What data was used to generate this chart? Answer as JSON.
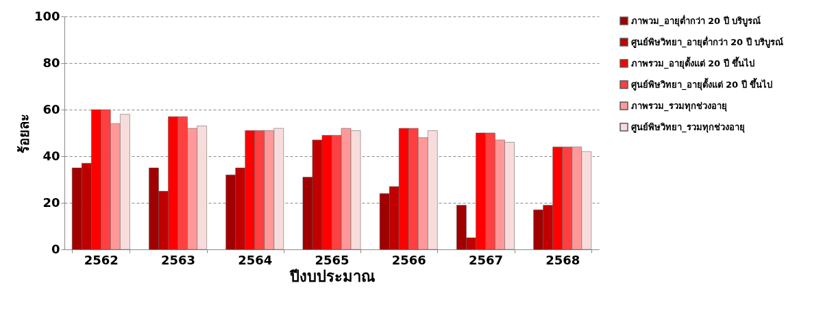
{
  "chart_data": {
    "type": "bar",
    "xlabel": "ปีงบประมาณ",
    "ylabel": "ร้อยละ",
    "categories": [
      "2562",
      "2563",
      "2564",
      "2565",
      "2566",
      "2567",
      "2568"
    ],
    "series": [
      {
        "name": "ภาพวม_อายุต่ำกว่า 20 ปี บริบูรณ์",
        "color": "#a00000",
        "values": [
          35,
          35,
          32,
          31,
          24,
          19,
          17
        ]
      },
      {
        "name": "ศูนย์พิษวิทยา_อายุต่ำกว่า 20 ปี บริบูรณ์",
        "color": "#c00000",
        "values": [
          37,
          25,
          35,
          47,
          27,
          5,
          19
        ]
      },
      {
        "name": "ภาพรวม_อายุตั้งแต่ 20 ปี ขึ้นไป",
        "color": "#ff0000",
        "values": [
          60,
          57,
          51,
          49,
          52,
          50,
          44
        ]
      },
      {
        "name": "ศูนย์พิษวิทยา_อายุตั้งแต่ 20 ปี ขึ้นไป",
        "color": "#ff4040",
        "values": [
          60,
          57,
          51,
          49,
          52,
          50,
          44
        ]
      },
      {
        "name": "ภาพรวม_รวมทุกช่วงอายุ",
        "color": "#ff9999",
        "values": [
          54,
          52,
          51,
          52,
          48,
          47,
          44
        ]
      },
      {
        "name": "ศูนย์พิษวิทยา_รวมทุกช่วงอายุ",
        "color": "#f8dcdc",
        "values": [
          58,
          53,
          52,
          51,
          51,
          46,
          42
        ]
      }
    ],
    "ylim": [
      0,
      100
    ],
    "yticks": [
      0,
      20,
      40,
      60,
      80,
      100
    ],
    "grid": "y",
    "legend": "right"
  }
}
